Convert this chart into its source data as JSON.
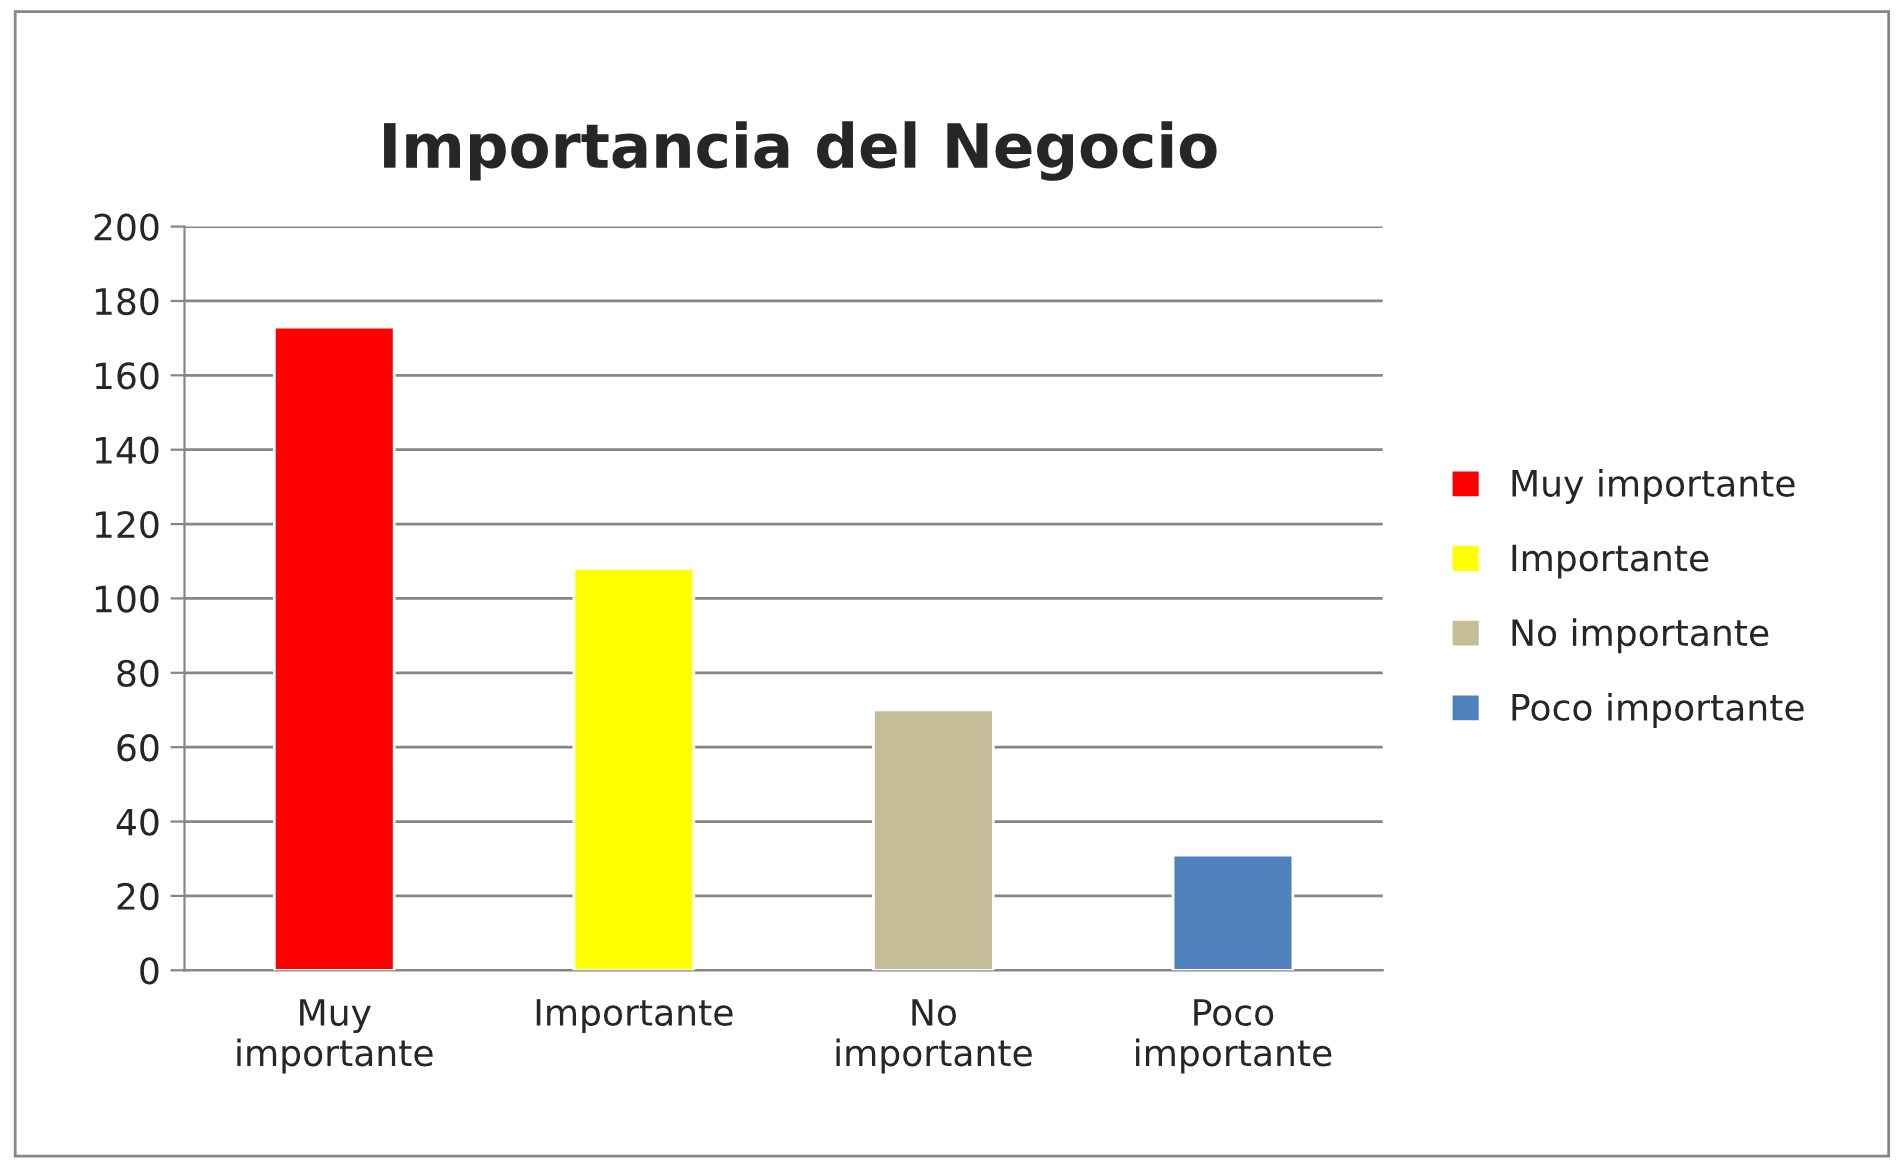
{
  "chart_data": {
    "type": "bar",
    "title": "Importancia del Negocio",
    "categories": [
      "Muy importante",
      "Importante",
      "No importante",
      "Poco importante"
    ],
    "series": [
      {
        "name": "Muy importante",
        "color": "#ff0000",
        "values": [
          173,
          null,
          null,
          null
        ]
      },
      {
        "name": "Importante",
        "color": "#ffff00",
        "values": [
          null,
          108,
          null,
          null
        ]
      },
      {
        "name": "No importante",
        "color": "#c4bd97",
        "values": [
          null,
          null,
          70,
          null
        ]
      },
      {
        "name": "Poco importante",
        "color": "#4f81bd",
        "values": [
          null,
          null,
          null,
          31
        ]
      }
    ],
    "ylim": [
      0,
      200
    ],
    "yticks": [
      0,
      20,
      40,
      60,
      80,
      100,
      120,
      140,
      160,
      180,
      200
    ],
    "grid": "y",
    "legend": "right"
  }
}
